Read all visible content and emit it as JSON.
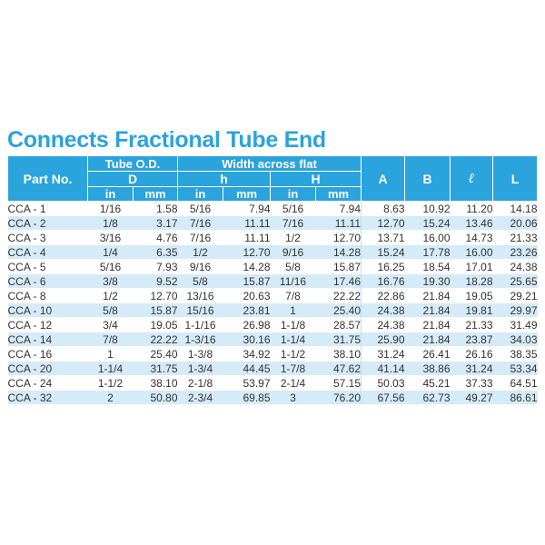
{
  "title": "Connects Fractional Tube End",
  "headers": {
    "part_no": "Part No.",
    "tube_od": "Tube O.D.",
    "tube_od_symbol": "D",
    "width_across_flat": "Width across flat",
    "h_lower": "h",
    "h_upper": "H",
    "a": "A",
    "b": "B",
    "l_lower": "ℓ",
    "l_upper": "L",
    "unit_in": "in",
    "unit_mm": "mm"
  },
  "rows": [
    [
      "CCA -  1",
      "1/16",
      "1.58",
      "5/16",
      "7.94",
      "5/16",
      "7.94",
      "8.63",
      "10.92",
      "11.20",
      "14.18"
    ],
    [
      "CCA -  2",
      "1/8",
      "3.17",
      "7/16",
      "11.11",
      "7/16",
      "11.11",
      "12.70",
      "15.24",
      "13.46",
      "20.06"
    ],
    [
      "CCA -  3",
      "3/16",
      "4.76",
      "7/16",
      "11.11",
      "1/2",
      "12.70",
      "13.71",
      "16.00",
      "14.73",
      "21.33"
    ],
    [
      "CCA -  4",
      "1/4",
      "6.35",
      "1/2",
      "12.70",
      "9/16",
      "14.28",
      "15.24",
      "17.78",
      "16.00",
      "23.26"
    ],
    [
      "CCA -  5",
      "5/16",
      "7.93",
      "9/16",
      "14.28",
      "5/8",
      "15.87",
      "16.25",
      "18.54",
      "17.01",
      "24.38"
    ],
    [
      "CCA -  6",
      "3/8",
      "9.52",
      "5/8",
      "15.87",
      "11/16",
      "17.46",
      "16.76",
      "19.30",
      "18.28",
      "25.65"
    ],
    [
      "CCA -  8",
      "1/2",
      "12.70",
      "13/16",
      "20.63",
      "7/8",
      "22.22",
      "22.86",
      "21.84",
      "19.05",
      "29.21"
    ],
    [
      "CCA - 10",
      "5/8",
      "15.87",
      "15/16",
      "23.81",
      "1",
      "25.40",
      "24.38",
      "21.84",
      "19.81",
      "29.97"
    ],
    [
      "CCA - 12",
      "3/4",
      "19.05",
      "1-1/16",
      "26.98",
      "1-1/8",
      "28.57",
      "24.38",
      "21.84",
      "21.33",
      "31.49"
    ],
    [
      "CCA - 14",
      "7/8",
      "22.22",
      "1-3/16",
      "30.16",
      "1-1/4",
      "31.75",
      "25.90",
      "21.84",
      "23.87",
      "34.03"
    ],
    [
      "CCA - 16",
      "1",
      "25.40",
      "1-3/8",
      "34.92",
      "1-1/2",
      "38.10",
      "31.24",
      "26.41",
      "26.16",
      "38.35"
    ],
    [
      "CCA - 20",
      "1-1/4",
      "31.75",
      "1-3/4",
      "44.45",
      "1-7/8",
      "47.62",
      "41.14",
      "38.86",
      "31.24",
      "53.34"
    ],
    [
      "CCA - 24",
      "1-1/2",
      "38.10",
      "2-1/8",
      "53.97",
      "2-1/4",
      "57.15",
      "50.03",
      "45.21",
      "37.33",
      "64.51"
    ],
    [
      "CCA - 32",
      "2",
      "50.80",
      "2-3/4",
      "69.85",
      "3",
      "76.20",
      "67.56",
      "62.73",
      "49.27",
      "86.61"
    ]
  ],
  "colors": {
    "accent": "#2ba3dc",
    "stripe": "#d5ebf7",
    "text": "#333333"
  }
}
